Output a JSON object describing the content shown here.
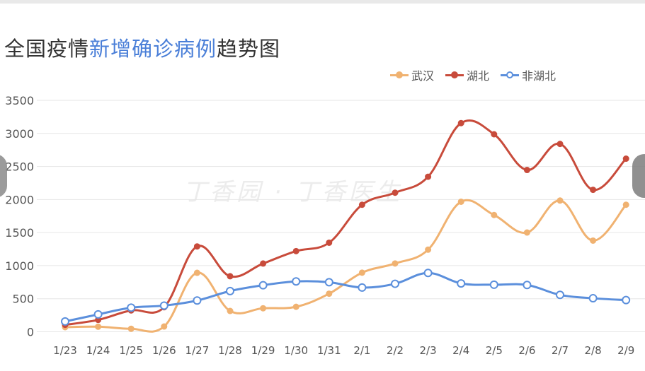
{
  "title_prefix": "全国疫情",
  "title_accent": "新增确诊病例",
  "title_suffix": "趋势图",
  "watermark": "丁香园 · 丁香医生",
  "chart_data": {
    "type": "line",
    "title": "全国疫情新增确诊病例趋势图",
    "categories": [
      "1/23",
      "1/24",
      "1/25",
      "1/26",
      "1/27",
      "1/28",
      "1/29",
      "1/30",
      "1/31",
      "2/1",
      "2/2",
      "2/3",
      "2/4",
      "2/5",
      "2/6",
      "2/7",
      "2/8",
      "2/9"
    ],
    "ylim": [
      0,
      3500
    ],
    "yticks": [
      0,
      500,
      1000,
      1500,
      2000,
      2500,
      3000,
      3500
    ],
    "grid": true,
    "legend_position": "top-right",
    "series": [
      {
        "name": "武汉",
        "color": "#f0b271",
        "marker": "filled",
        "values": [
          70,
          77,
          46,
          80,
          892,
          315,
          356,
          378,
          576,
          894,
          1033,
          1242,
          1967,
          1766,
          1501,
          1985,
          1379,
          1921
        ]
      },
      {
        "name": "湖北",
        "color": "#c84b3b",
        "marker": "filled",
        "values": [
          105,
          180,
          323,
          371,
          1291,
          840,
          1032,
          1220,
          1347,
          1921,
          2103,
          2345,
          3156,
          2987,
          2447,
          2841,
          2147,
          2618
        ]
      },
      {
        "name": "非湖北",
        "color": "#5b8fdc",
        "marker": "hollow",
        "values": [
          156,
          263,
          365,
          396,
          473,
          616,
          704,
          762,
          750,
          669,
          726,
          890,
          731,
          712,
          708,
          558,
          507,
          479
        ]
      }
    ]
  }
}
